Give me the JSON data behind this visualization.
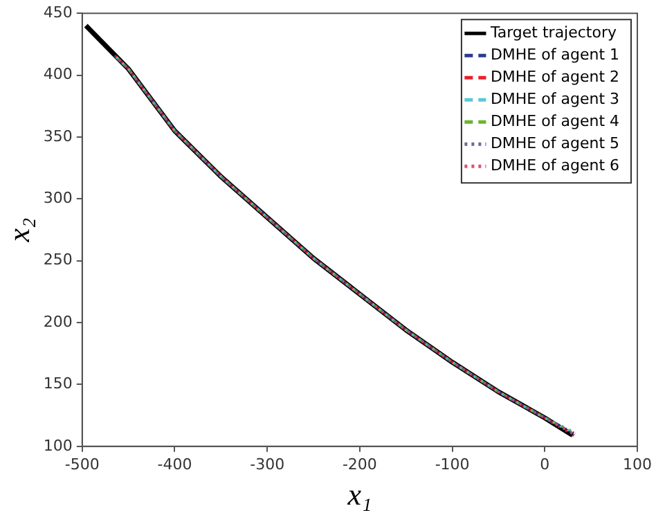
{
  "chart_data": {
    "type": "line",
    "xlabel": "x₁",
    "ylabel": "x₂",
    "xlim": [
      -500,
      100
    ],
    "ylim": [
      100,
      450
    ],
    "xticks": [
      -500,
      -400,
      -300,
      -200,
      -100,
      0,
      100
    ],
    "yticks": [
      100,
      150,
      200,
      250,
      300,
      350,
      400,
      450
    ],
    "grid": false,
    "legend": "top right",
    "marker": "none",
    "series": [
      {
        "name": "Target trajectory",
        "color": "#000000",
        "line_style": "solid",
        "x": [
          -496,
          -450,
          -400,
          -350,
          -300,
          -250,
          -200,
          -150,
          -100,
          -50,
          0,
          30
        ],
        "values": [
          440,
          405,
          355,
          318,
          285,
          252,
          223,
          194,
          168,
          144,
          123,
          109
        ]
      },
      {
        "name": "DMHE of agent 1",
        "color": "#2b3a8f",
        "line_style": "dashed",
        "x": [
          -465,
          -450,
          -400,
          -350,
          -300,
          -250,
          -200,
          -150,
          -100,
          -50,
          0,
          33
        ],
        "values": [
          416,
          405,
          355,
          318,
          285,
          252,
          223,
          194,
          168,
          144,
          123,
          110
        ]
      },
      {
        "name": "DMHE of agent 2",
        "color": "#e8202a",
        "line_style": "dashed",
        "x": [
          -465,
          -450,
          -400,
          -350,
          -300,
          -250,
          -200,
          -150,
          -100,
          -50,
          0,
          33
        ],
        "values": [
          416,
          405,
          355,
          318,
          285,
          252,
          223,
          194,
          168,
          144,
          123,
          108
        ]
      },
      {
        "name": "DMHE of agent 3",
        "color": "#5bc8d8",
        "line_style": "dashed",
        "x": [
          -465,
          -450,
          -400,
          -350,
          -300,
          -250,
          -200,
          -150,
          -100,
          -50,
          0,
          33
        ],
        "values": [
          416,
          405,
          355,
          318,
          285,
          252,
          223,
          194,
          168,
          144,
          123,
          110
        ]
      },
      {
        "name": "DMHE of agent 4",
        "color": "#6ab42d",
        "line_style": "dashed",
        "x": [
          -465,
          -450,
          -400,
          -350,
          -300,
          -250,
          -200,
          -150,
          -100,
          -50,
          0,
          33
        ],
        "values": [
          416,
          405,
          355,
          318,
          285,
          252,
          223,
          194,
          168,
          144,
          123,
          111
        ]
      },
      {
        "name": "DMHE of agent 5",
        "color": "#6a6a9a",
        "line_style": "dotted",
        "x": [
          -465,
          -450,
          -400,
          -350,
          -300,
          -250,
          -200,
          -150,
          -100,
          -50,
          0,
          33
        ],
        "values": [
          416,
          405,
          355,
          318,
          285,
          252,
          223,
          194,
          168,
          144,
          123,
          110
        ]
      },
      {
        "name": "DMHE of agent 6",
        "color": "#e05070",
        "line_style": "dotted",
        "x": [
          -465,
          -450,
          -400,
          -350,
          -300,
          -250,
          -200,
          -150,
          -100,
          -50,
          0,
          33
        ],
        "values": [
          416,
          405,
          355,
          318,
          285,
          252,
          223,
          194,
          168,
          144,
          123,
          109
        ]
      }
    ]
  }
}
